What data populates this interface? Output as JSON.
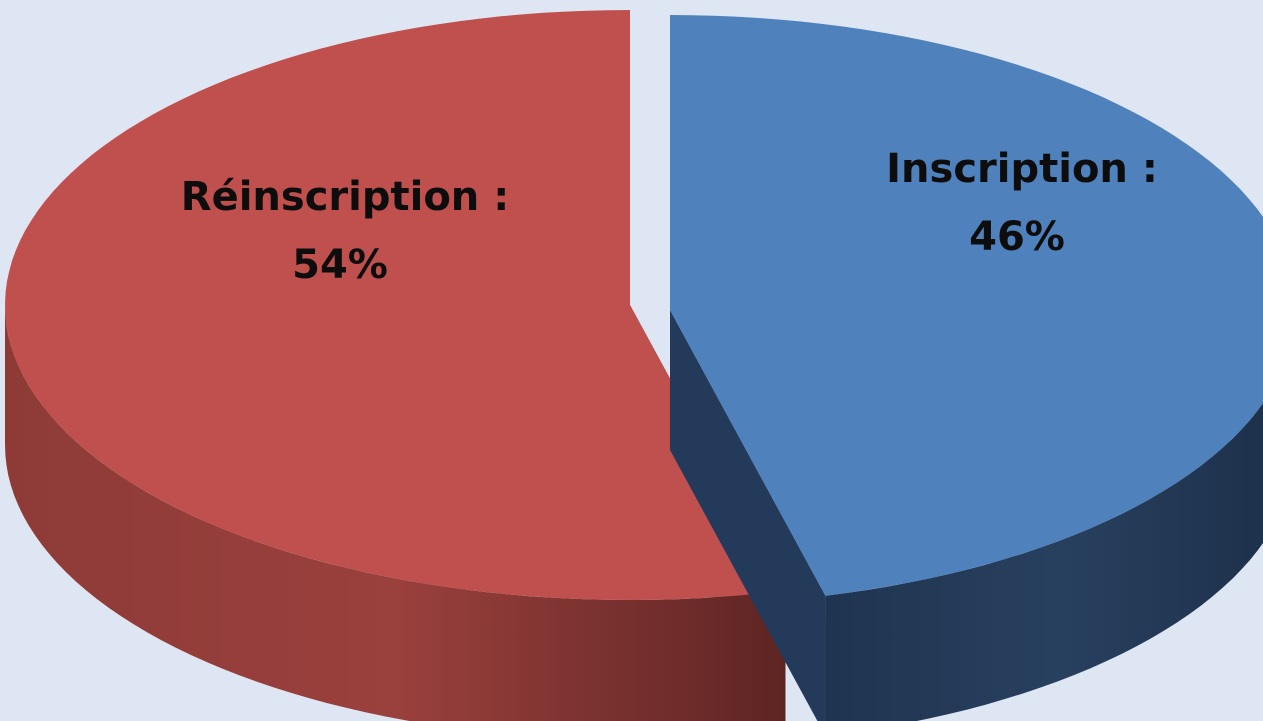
{
  "chart_data": {
    "type": "pie",
    "style": "3d-exploded",
    "categories": [
      "Réinscription",
      "Inscription"
    ],
    "values": [
      54,
      46
    ],
    "unit": "%",
    "labels": [
      {
        "name": "Réinscription :",
        "value": "54%"
      },
      {
        "name": "Inscription :",
        "value": "46%"
      }
    ],
    "colors": {
      "Réinscription": {
        "top": "#c0504d",
        "side": "#8c3a38"
      },
      "Inscription": {
        "top": "#4f81bd",
        "side": "#243a5a"
      }
    },
    "start_direction": "top",
    "legend": "none",
    "background": "#dde6f2"
  }
}
